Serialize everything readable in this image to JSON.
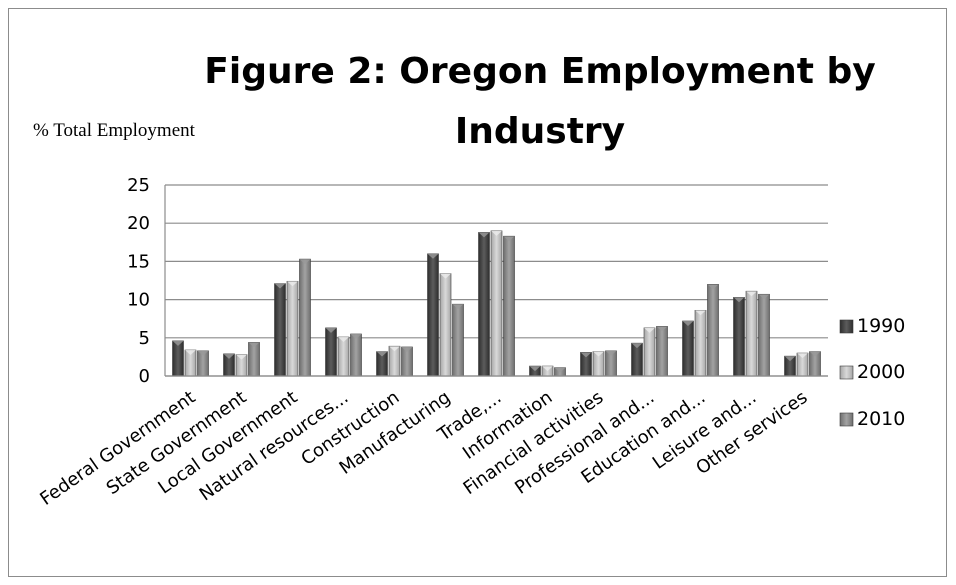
{
  "chart_data": {
    "type": "bar",
    "title": "Figure 2: Oregon Employment by Industry",
    "ylabel": "% Total Employment",
    "xlabel": "",
    "ylim": [
      0,
      25
    ],
    "yticks": [
      0,
      5,
      10,
      15,
      20,
      25
    ],
    "grid": true,
    "legend_position": "right",
    "categories": [
      "Federal Government",
      "State Government",
      "Local Government",
      "Natural resources...",
      "Construction",
      "Manufacturing",
      "Trade,...",
      "Information",
      "Financial activities",
      "Professional and...",
      "Education and...",
      "Leisure and...",
      "Other services"
    ],
    "series": [
      {
        "name": "1990",
        "color": "#4a4a4a",
        "values": [
          4.6,
          2.9,
          12.1,
          6.3,
          3.2,
          16.0,
          18.8,
          1.3,
          3.1,
          4.3,
          7.2,
          10.3,
          2.6
        ]
      },
      {
        "name": "2000",
        "color": "#bdbdbd",
        "values": [
          3.4,
          2.8,
          12.4,
          5.1,
          3.9,
          13.4,
          19.0,
          1.3,
          3.2,
          6.3,
          8.6,
          11.1,
          3.0
        ]
      },
      {
        "name": "2010",
        "color": "#8a8a8a",
        "values": [
          3.3,
          4.4,
          15.3,
          5.5,
          3.8,
          9.4,
          18.3,
          1.1,
          3.3,
          6.5,
          12.0,
          10.7,
          3.2
        ]
      }
    ]
  }
}
